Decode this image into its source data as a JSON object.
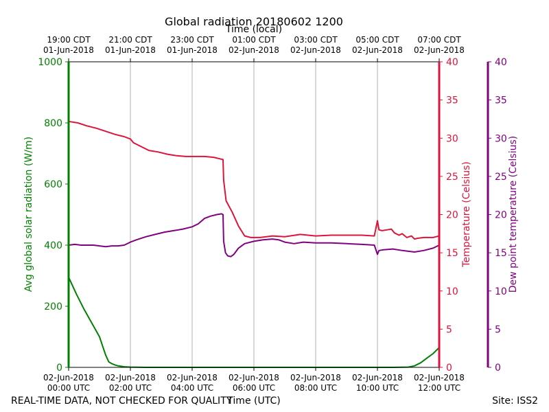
{
  "chart_data": {
    "type": "line",
    "title": "Global radiation 20180602 1200",
    "top_xlabel": "Time (local)",
    "xlabel": "Time (UTC)",
    "footer_left": "REAL-TIME DATA, NOT CHECKED FOR QUALITY",
    "footer_right": "Site: ISS2",
    "x_range_hours_utc": [
      0,
      12
    ],
    "grid": "vertical",
    "x_ticks_bottom": [
      {
        "h": 0,
        "date": "02-Jun-2018",
        "time": "00:00 UTC"
      },
      {
        "h": 2,
        "date": "02-Jun-2018",
        "time": "02:00 UTC"
      },
      {
        "h": 4,
        "date": "02-Jun-2018",
        "time": "04:00 UTC"
      },
      {
        "h": 6,
        "date": "02-Jun-2018",
        "time": "06:00 UTC"
      },
      {
        "h": 8,
        "date": "02-Jun-2018",
        "time": "08:00 UTC"
      },
      {
        "h": 10,
        "date": "02-Jun-2018",
        "time": "10:00 UTC"
      },
      {
        "h": 12,
        "date": "02-Jun-2018",
        "time": "12:00 UTC"
      }
    ],
    "x_ticks_top": [
      {
        "h": 0,
        "time": "19:00 CDT",
        "date": "01-Jun-2018"
      },
      {
        "h": 2,
        "time": "21:00 CDT",
        "date": "01-Jun-2018"
      },
      {
        "h": 4,
        "time": "23:00 CDT",
        "date": "01-Jun-2018"
      },
      {
        "h": 6,
        "time": "01:00 CDT",
        "date": "02-Jun-2018"
      },
      {
        "h": 8,
        "time": "03:00 CDT",
        "date": "02-Jun-2018"
      },
      {
        "h": 10,
        "time": "05:00 CDT",
        "date": "02-Jun-2018"
      },
      {
        "h": 12,
        "time": "07:00 CDT",
        "date": "02-Jun-2018"
      }
    ],
    "axes": {
      "left": {
        "label": "Avg global solar radiation (W/m)",
        "range": [
          0,
          1000
        ],
        "ticks": [
          "0",
          "200",
          "400",
          "600",
          "800",
          "1000"
        ],
        "color": "#008000"
      },
      "right": {
        "label": "Temperature (Celsius)",
        "range": [
          0,
          40
        ],
        "ticks": [
          "0",
          "5",
          "10",
          "15",
          "20",
          "25",
          "30",
          "35",
          "40"
        ],
        "color": "#dc143c"
      },
      "right2": {
        "label": "Dew point temperature (Celsius)",
        "range": [
          0,
          40
        ],
        "ticks": [
          "0",
          "5",
          "10",
          "15",
          "20",
          "25",
          "30",
          "35",
          "40"
        ],
        "color": "#800080"
      }
    },
    "series": [
      {
        "name": "Avg global solar radiation",
        "axis": "left",
        "color": "#008000",
        "x": [
          0,
          0.25,
          0.5,
          0.75,
          1.0,
          1.1,
          1.2,
          1.3,
          1.4,
          1.5,
          1.6,
          1.8,
          2.0,
          2.5,
          3,
          4,
          6,
          8,
          10,
          10.5,
          11.0,
          11.2,
          11.4,
          11.6,
          11.8,
          12.0
        ],
        "values": [
          295,
          240,
          190,
          145,
          100,
          70,
          40,
          18,
          12,
          8,
          5,
          2,
          1,
          0,
          0,
          0,
          0,
          0,
          0,
          0,
          1,
          5,
          15,
          30,
          45,
          65
        ]
      },
      {
        "name": "Temperature",
        "axis": "right",
        "color": "#dc143c",
        "x": [
          0,
          0.3,
          0.6,
          0.9,
          1.2,
          1.5,
          1.8,
          2.0,
          2.1,
          2.3,
          2.6,
          2.9,
          3.2,
          3.5,
          3.8,
          4.1,
          4.4,
          4.7,
          4.9,
          5.0,
          5.02,
          5.1,
          5.3,
          5.5,
          5.7,
          5.9,
          6.2,
          6.6,
          7.0,
          7.5,
          8.0,
          8.5,
          9.0,
          9.5,
          9.9,
          10.0,
          10.05,
          10.15,
          10.3,
          10.45,
          10.55,
          10.7,
          10.8,
          10.95,
          11.1,
          11.2,
          11.3,
          11.5,
          11.8,
          12.0
        ],
        "values": [
          32.2,
          32.0,
          31.6,
          31.3,
          30.9,
          30.5,
          30.2,
          29.9,
          29.4,
          29.0,
          28.4,
          28.2,
          27.9,
          27.7,
          27.6,
          27.6,
          27.6,
          27.5,
          27.3,
          27.2,
          24.5,
          21.8,
          20.3,
          18.5,
          17.2,
          17.0,
          17.0,
          17.2,
          17.1,
          17.4,
          17.2,
          17.3,
          17.3,
          17.3,
          17.2,
          19.2,
          18.0,
          17.9,
          18.0,
          18.1,
          17.6,
          17.3,
          17.5,
          17.0,
          17.2,
          16.8,
          16.9,
          17.0,
          17.0,
          17.2
        ]
      },
      {
        "name": "Dew point temperature",
        "axis": "right2",
        "color": "#800080",
        "x": [
          0,
          0.2,
          0.4,
          0.6,
          0.8,
          1.0,
          1.2,
          1.4,
          1.6,
          1.8,
          2.0,
          2.2,
          2.5,
          2.8,
          3.1,
          3.4,
          3.7,
          4.0,
          4.2,
          4.4,
          4.6,
          4.8,
          4.95,
          5.0,
          5.02,
          5.08,
          5.15,
          5.25,
          5.35,
          5.5,
          5.7,
          6.0,
          6.3,
          6.6,
          6.8,
          7.0,
          7.3,
          7.6,
          8.0,
          8.5,
          9.0,
          9.5,
          9.9,
          10.0,
          10.05,
          10.2,
          10.5,
          10.8,
          11.0,
          11.2,
          11.5,
          11.8,
          12.0
        ],
        "values": [
          16.0,
          16.1,
          16.0,
          16.0,
          16.0,
          15.9,
          15.8,
          15.9,
          15.9,
          16.0,
          16.4,
          16.7,
          17.1,
          17.4,
          17.7,
          17.9,
          18.1,
          18.4,
          18.8,
          19.5,
          19.8,
          20.0,
          20.1,
          20.0,
          16.5,
          15.0,
          14.6,
          14.5,
          14.8,
          15.6,
          16.2,
          16.5,
          16.7,
          16.8,
          16.7,
          16.4,
          16.2,
          16.4,
          16.3,
          16.3,
          16.2,
          16.1,
          16.0,
          14.8,
          15.3,
          15.4,
          15.5,
          15.3,
          15.2,
          15.1,
          15.3,
          15.6,
          16.0
        ]
      }
    ]
  }
}
